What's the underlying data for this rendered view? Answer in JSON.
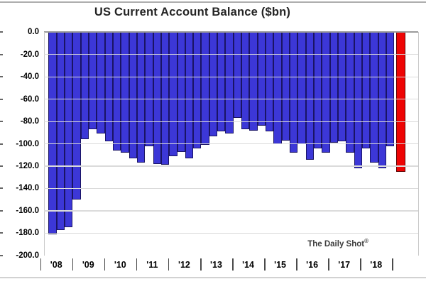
{
  "title": {
    "text": "US Current Account Balance ($bn)"
  },
  "attribution": {
    "text": "The Daily Shot",
    "reg": "®"
  },
  "chart_data": {
    "type": "bar",
    "title": "US Current Account Balance ($bn)",
    "unit": "$bn",
    "xlabel": "",
    "ylabel": "",
    "ylim": [
      -200,
      0
    ],
    "grid": "horizontal",
    "legend": "none",
    "y_tick_labels": [
      "0.0",
      "-20.0",
      "-40.0",
      "-60.0",
      "-80.0",
      "-100.0",
      "-120.0",
      "-140.0",
      "-160.0",
      "-180.0",
      "-200.0"
    ],
    "x_year_labels": [
      "'08",
      "'09",
      "'10",
      "'11",
      "'12",
      "'13",
      "'14",
      "'15",
      "'16",
      "'17",
      "'18"
    ],
    "values": [
      -181,
      -177,
      -175,
      -150,
      -96,
      -87,
      -91,
      -98,
      -106,
      -108,
      -113,
      -117,
      -102,
      -118,
      -119,
      -111,
      -107,
      -113,
      -104,
      -101,
      -93,
      -89,
      -91,
      -77,
      -87,
      -88,
      -84,
      -89,
      -100,
      -97,
      -108,
      -100,
      -114,
      -104,
      -108,
      -99,
      -98,
      -108,
      -122,
      -104,
      -117,
      -122,
      -102,
      -125
    ],
    "highlight_index": 43,
    "colors": {
      "bar_fill": "#3c37d7",
      "bar_border": "#1a1464",
      "highlight_fill": "#ee0404",
      "highlight_border": "#5f0000",
      "gridline": "#dbdbdb",
      "zero_line": "#9a9a9a",
      "axis_text": "#000000"
    }
  }
}
